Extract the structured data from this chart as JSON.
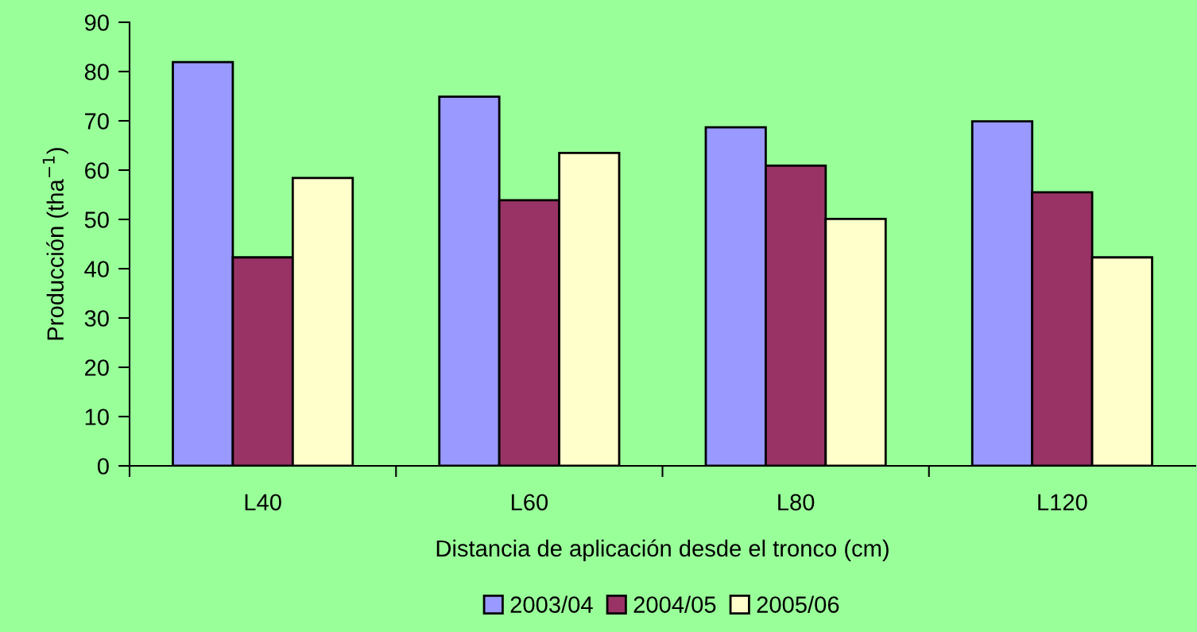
{
  "chart_data": {
    "type": "bar",
    "xlabel": "Distancia de aplicación desde el tronco (cm)",
    "ylabel": "Producción (tha$^{−1}$)",
    "categories": [
      "L40",
      "L60",
      "L80",
      "L120"
    ],
    "series": [
      {
        "name": "2003/04",
        "color": "#9999ff",
        "values": [
          81.9,
          74.9,
          68.7,
          69.9
        ]
      },
      {
        "name": "2004/05",
        "color": "#993366",
        "values": [
          42.3,
          53.9,
          60.9,
          55.5
        ]
      },
      {
        "name": "2005/06",
        "color": "#ffffcc",
        "values": [
          58.4,
          63.5,
          50.1,
          42.3
        ]
      }
    ],
    "ylim": [
      0,
      90
    ],
    "yticks": [
      0,
      10,
      20,
      30,
      40,
      50,
      60,
      70,
      80,
      90
    ],
    "grid": false,
    "legend": "bottom"
  }
}
